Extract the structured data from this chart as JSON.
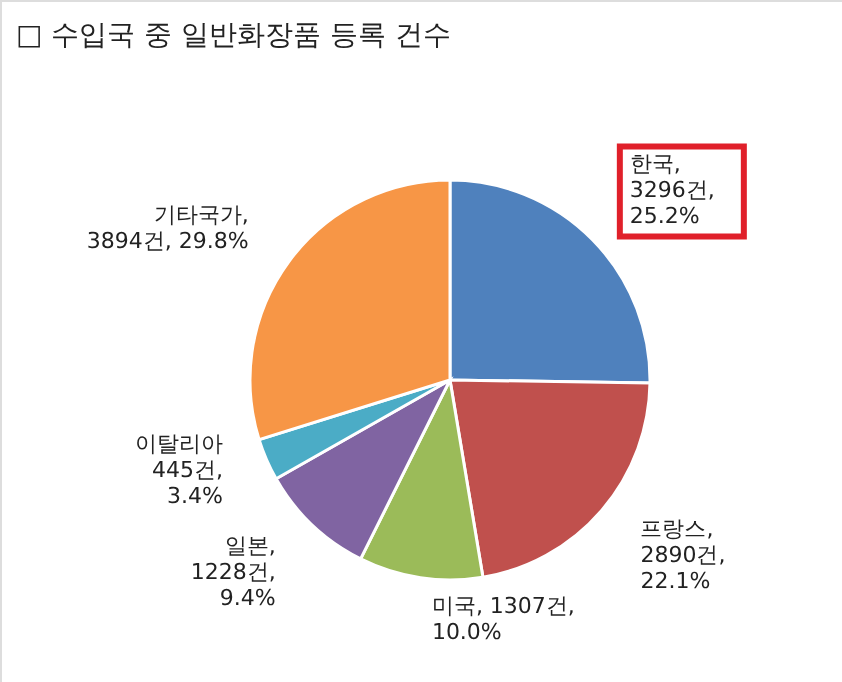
{
  "chart_data": {
    "type": "pie",
    "title": "□ 수입국 중 일반화장품 등록 건수",
    "categories": [
      "한국",
      "프랑스",
      "미국",
      "일본",
      "이탈리아",
      "기타국가"
    ],
    "values": [
      3296,
      2890,
      1307,
      1228,
      445,
      3894
    ],
    "colors": [
      "#4f81bd",
      "#c0504d",
      "#9bbb59",
      "#8064a2",
      "#4bacc6",
      "#f79646"
    ],
    "value_labels": [
      ",\n3296건,\n25.2%",
      ",\n2890건,\n22.1%",
      ", 1307건,\n10.0%",
      ",\n1228건,\n9.4%",
      "\n445건,\n3.4%",
      ",\n3894건, 29.8%"
    ]
  }
}
